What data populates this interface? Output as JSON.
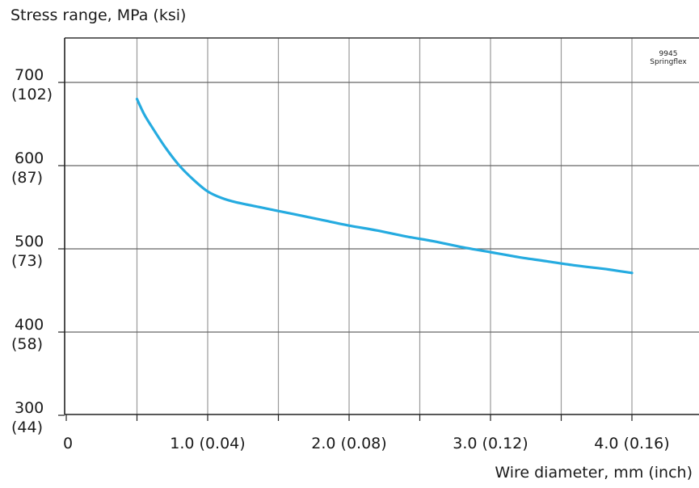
{
  "chart_data": {
    "type": "line",
    "title": "Stress range, MPa (ksi)",
    "xlabel": "Wire diameter, mm (inch)",
    "ylabel": "",
    "annotation": "9945\nSpringflex",
    "xlim": [
      0,
      4.5
    ],
    "ylim": [
      300,
      700
    ],
    "grid": true,
    "x_ticks": [
      {
        "value": 0,
        "label": "0"
      },
      {
        "value": 1.0,
        "label": "1.0 (0.04)"
      },
      {
        "value": 2.0,
        "label": "2.0 (0.08)"
      },
      {
        "value": 3.0,
        "label": "3.0 (0.12)"
      },
      {
        "value": 4.0,
        "label": "4.0 (0.16)"
      }
    ],
    "x_gridlines": [
      0.5,
      1.0,
      1.5,
      2.0,
      2.5,
      3.0,
      3.5,
      4.0
    ],
    "y_ticks": [
      {
        "value": 700,
        "label": "700",
        "sublabel": "(102)"
      },
      {
        "value": 600,
        "label": "600",
        "sublabel": "(87)"
      },
      {
        "value": 500,
        "label": "500",
        "sublabel": "(73)"
      },
      {
        "value": 400,
        "label": "400",
        "sublabel": "(58)"
      },
      {
        "value": 300,
        "label": "300",
        "sublabel": "(44)"
      }
    ],
    "series": [
      {
        "color": "#25ABE0",
        "x": [
          0.5,
          0.55,
          0.6,
          0.7,
          0.8,
          0.9,
          1.0,
          1.1,
          1.2,
          1.4,
          1.6,
          1.8,
          2.0,
          2.2,
          2.4,
          2.6,
          2.8,
          3.0,
          3.2,
          3.4,
          3.6,
          3.8,
          4.0
        ],
        "y": [
          680,
          662,
          648,
          622,
          600,
          583,
          569,
          561,
          556,
          549,
          542,
          535,
          528,
          522,
          515,
          509,
          502,
          496,
          490,
          485,
          480,
          476,
          471
        ]
      }
    ]
  }
}
